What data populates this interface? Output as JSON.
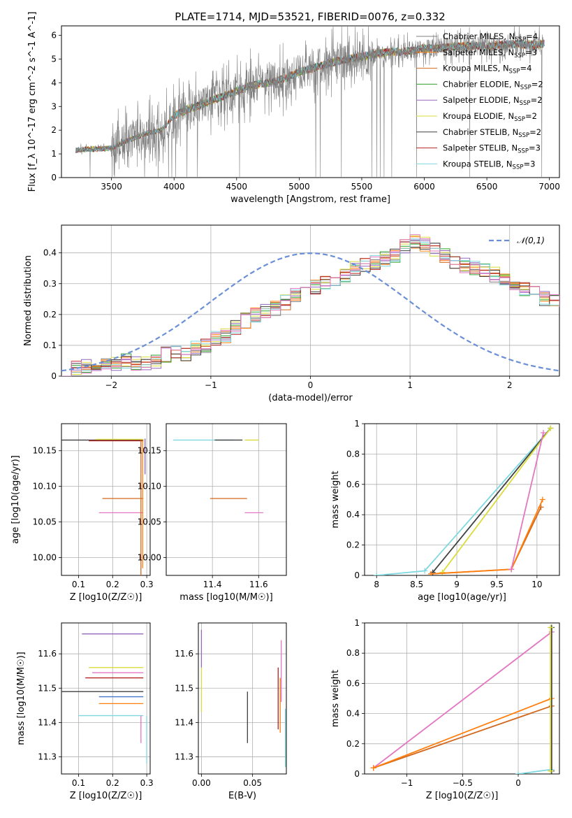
{
  "figure_title": "PLATE=1714, MJD=53521, FIBERID=0076, z=0.332",
  "colors": {
    "Chabrier MILES": "#7f7f7f",
    "Salpeter MILES": "#ff7f0e",
    "Kroupa MILES": "#d2691e",
    "Chabrier ELODIE": "#2ca02c",
    "Salpeter ELODIE": "#9467bd",
    "Kroupa ELODIE": "#dbdb3d",
    "Chabrier STELIB": "#404040",
    "Salpeter STELIB": "#b22222",
    "Kroupa STELIB": "#7fd8e0",
    "pink": "#e377c2",
    "blue": "#4477cc",
    "normal": "#6a8fd6",
    "grid": "#b0b0b0"
  },
  "chart_data": [
    {
      "id": "spectrum",
      "type": "line",
      "title": "PLATE=1714, MJD=53521, FIBERID=0076, z=0.332",
      "xlabel": "wavelength [Angstrom, rest frame]",
      "ylabel": "Flux [f_λ 10^-17 erg cm^-2 s^-1 A^-1]",
      "xlim": [
        3100,
        7080
      ],
      "ylim": [
        0,
        6.4
      ],
      "xticks": [
        3500,
        4000,
        4500,
        5000,
        5500,
        6000,
        6500,
        7000
      ],
      "yticks": [
        0,
        1,
        2,
        3,
        4,
        5,
        6
      ],
      "grid": false,
      "legend_position": "top-right",
      "legend": [
        {
          "label": "Chabrier MILES, N",
          "sub": "SSP",
          "suffix": "=4",
          "color": "#7f7f7f"
        },
        {
          "label": "Salpeter MILES, N",
          "sub": "SSP",
          "suffix": "=3",
          "color": "#ff7f0e"
        },
        {
          "label": "Kroupa MILES, N",
          "sub": "SSP",
          "suffix": "=4",
          "color": "#d2691e"
        },
        {
          "label": "Chabrier ELODIE, N",
          "sub": "SSP",
          "suffix": "=2",
          "color": "#2ca02c"
        },
        {
          "label": "Salpeter ELODIE, N",
          "sub": "SSP",
          "suffix": "=2",
          "color": "#9467bd"
        },
        {
          "label": "Kroupa ELODIE, N",
          "sub": "SSP",
          "suffix": "=2",
          "color": "#dbdb3d"
        },
        {
          "label": "Chabrier STELIB, N",
          "sub": "SSP",
          "suffix": "=2",
          "color": "#404040"
        },
        {
          "label": "Salpeter STELIB, N",
          "sub": "SSP",
          "suffix": "=3",
          "color": "#b22222"
        },
        {
          "label": "Kroupa STELIB, N",
          "sub": "SSP",
          "suffix": "=3",
          "color": "#7fd8e0"
        }
      ],
      "continuum": {
        "wavelength": [
          3210,
          3300,
          3400,
          3500,
          3600,
          3700,
          3800,
          3900,
          4000,
          4100,
          4200,
          4300,
          4400,
          4500,
          4600,
          4700,
          4800,
          4900,
          5000,
          5100,
          5200,
          5300,
          5400,
          5500,
          5600,
          5700,
          5800,
          5900,
          6000,
          6100,
          6200,
          6300,
          6400,
          6500,
          6600,
          6700,
          6800,
          6900,
          6960
        ],
        "flux": [
          1.15,
          1.2,
          1.2,
          1.25,
          1.5,
          1.7,
          1.9,
          2.0,
          2.6,
          2.85,
          3.05,
          3.25,
          3.45,
          3.65,
          3.85,
          3.95,
          4.05,
          4.2,
          4.45,
          4.6,
          4.75,
          4.9,
          5.0,
          5.1,
          5.2,
          5.3,
          5.3,
          5.35,
          5.45,
          5.45,
          5.5,
          5.55,
          5.55,
          5.55,
          5.6,
          5.65,
          5.6,
          5.6,
          5.65
        ]
      }
    },
    {
      "id": "residuals",
      "type": "line",
      "xlabel": "(data-model)/error",
      "ylabel": "Normed distribution",
      "xlim": [
        -2.5,
        2.5
      ],
      "ylim": [
        0,
        0.49
      ],
      "xticks": [
        -2,
        -1,
        0,
        1,
        2
      ],
      "yticks": [
        0.0,
        0.1,
        0.2,
        0.3,
        0.4
      ],
      "grid": true,
      "legend_position": "top-right",
      "normal_label": "𝒩(0,1)",
      "bin_width": 0.1,
      "bin_edges_start": -2.5,
      "bin_values": [
        0.02,
        0.03,
        0.03,
        0.03,
        0.04,
        0.04,
        0.05,
        0.04,
        0.04,
        0.05,
        0.07,
        0.08,
        0.07,
        0.09,
        0.1,
        0.12,
        0.13,
        0.16,
        0.18,
        0.2,
        0.21,
        0.22,
        0.24,
        0.26,
        0.27,
        0.29,
        0.3,
        0.31,
        0.33,
        0.35,
        0.36,
        0.37,
        0.38,
        0.39,
        0.42,
        0.44,
        0.43,
        0.41,
        0.39,
        0.37,
        0.36,
        0.35,
        0.34,
        0.33,
        0.31,
        0.29,
        0.28,
        0.27,
        0.25,
        0.24,
        0.22,
        0.2,
        0.18,
        0.16,
        0.14,
        0.13,
        0.11,
        0.1,
        0.09,
        0.1,
        0.08,
        0.08,
        0.07,
        0.07,
        0.06,
        0.06,
        0.05,
        0.05,
        0.04,
        0.04,
        0.03,
        0.03,
        0.03,
        0.02,
        0.02
      ]
    },
    {
      "id": "age_vs_Z",
      "type": "scatter",
      "xlabel": "Z [log10(Z/Z☉)]",
      "ylabel": "age [log10(age/yr)]",
      "xlim": [
        0.05,
        0.31
      ],
      "ylim": [
        9.975,
        10.188
      ],
      "xticks": [
        0.1,
        0.2,
        0.3
      ],
      "yticks": [
        10.0,
        10.05,
        10.1,
        10.15
      ],
      "ytick_labels": [
        "10.00",
        "10.05",
        "10.10",
        "10.15"
      ],
      "grid": true,
      "errorbars": [
        {
          "x": 0.29,
          "y": 10.165,
          "xerr": [
            0.24,
            0.0
          ],
          "yerr": [
            0.0,
            0.0
          ],
          "color": "#404040"
        },
        {
          "x": 0.29,
          "y": 10.164,
          "xerr": [
            0.16,
            0.0
          ],
          "yerr": [
            0.0,
            0.0
          ],
          "color": "#b22222"
        },
        {
          "x": 0.29,
          "y": 10.166,
          "xerr": [
            0.14,
            0.0
          ],
          "yerr": [
            0.0,
            0.0
          ],
          "color": "#dbdb3d"
        },
        {
          "x": 0.29,
          "y": 10.083,
          "xerr": [
            0.12,
            0.0
          ],
          "yerr": [
            0.0,
            0.0
          ],
          "color": "#d2691e"
        },
        {
          "x": 0.29,
          "y": 10.063,
          "xerr": [
            0.13,
            0.0
          ],
          "yerr": [
            0.0,
            0.0
          ],
          "color": "#e377c2"
        },
        {
          "x": 0.283,
          "y": 10.165,
          "xerr": [
            0.0,
            0.0
          ],
          "yerr": [
            0.19,
            0.0
          ],
          "color": "#d2691e"
        },
        {
          "x": 0.288,
          "y": 10.165,
          "xerr": [
            0.0,
            0.0
          ],
          "yerr": [
            0.18,
            0.0
          ],
          "color": "#ff7f0e"
        },
        {
          "x": 0.295,
          "y": 10.167,
          "xerr": [
            0.0,
            0.0
          ],
          "yerr": [
            0.05,
            0.0
          ],
          "color": "#9467bd"
        }
      ]
    },
    {
      "id": "age_vs_mass",
      "type": "scatter",
      "xlabel": "mass [log10(M/M☉)]",
      "xlim": [
        11.2,
        11.72
      ],
      "ylim": [
        9.975,
        10.188
      ],
      "xticks": [
        11.4,
        11.6
      ],
      "yticks": [
        10.0,
        10.05,
        10.1,
        10.15
      ],
      "ytick_labels": [
        "10.00",
        "10.05",
        "10.10",
        "10.15"
      ],
      "grid": true,
      "errorbars": [
        {
          "x": 11.49,
          "y": 10.165,
          "xerr": [
            0.26,
            0.0
          ],
          "yerr": [
            0.0,
            0.0
          ],
          "color": "#7fd8e0"
        },
        {
          "x": 11.53,
          "y": 10.165,
          "xerr": [
            0.12,
            0.0
          ],
          "yerr": [
            0.0,
            0.0
          ],
          "color": "#404040"
        },
        {
          "x": 11.6,
          "y": 10.165,
          "xerr": [
            0.06,
            0.0
          ],
          "yerr": [
            0.0,
            0.0
          ],
          "color": "#dbdb3d"
        },
        {
          "x": 11.55,
          "y": 10.083,
          "xerr": [
            0.16,
            0.0
          ],
          "yerr": [
            0.0,
            0.0
          ],
          "color": "#d2691e"
        },
        {
          "x": 11.62,
          "y": 10.063,
          "xerr": [
            0.08,
            0.0
          ],
          "yerr": [
            0.0,
            0.0
          ],
          "color": "#e377c2"
        }
      ]
    },
    {
      "id": "massweight_vs_age",
      "type": "line",
      "xlabel": "age [log10(age/yr)]",
      "ylabel": "mass weight",
      "xlim": [
        7.85,
        10.28
      ],
      "ylim": [
        0,
        1
      ],
      "xticks": [
        8.0,
        8.5,
        9.0,
        9.5,
        10.0
      ],
      "yticks": [
        0.0,
        0.2,
        0.4,
        0.6,
        0.8,
        1.0
      ],
      "grid": true,
      "series": [
        {
          "color": "#7fd8e0",
          "x": [
            8.0,
            8.6,
            10.17
          ],
          "y": [
            0.0,
            0.03,
            0.97
          ]
        },
        {
          "color": "#404040",
          "x": [
            8.7,
            10.17
          ],
          "y": [
            0.02,
            0.97
          ]
        },
        {
          "color": "#dbdb3d",
          "x": [
            8.82,
            10.17
          ],
          "y": [
            0.02,
            0.97
          ]
        },
        {
          "color": "#d2691e",
          "x": [
            8.68,
            9.68,
            10.05
          ],
          "y": [
            0.01,
            0.04,
            0.45
          ]
        },
        {
          "color": "#ff7f0e",
          "x": [
            8.68,
            9.68,
            10.07
          ],
          "y": [
            0.01,
            0.04,
            0.5
          ]
        },
        {
          "color": "#e377c2",
          "x": [
            9.68,
            10.08
          ],
          "y": [
            0.04,
            0.94
          ]
        }
      ]
    },
    {
      "id": "mass_vs_Z",
      "type": "scatter",
      "xlabel": "Z [log10(Z/Z☉)]",
      "ylabel": "mass [log10(M/M☉)]",
      "xlim": [
        0.05,
        0.31
      ],
      "ylim": [
        11.25,
        11.69
      ],
      "xticks": [
        0.1,
        0.2,
        0.3
      ],
      "yticks": [
        11.3,
        11.4,
        11.5,
        11.6
      ],
      "grid": true,
      "errorbars": [
        {
          "x": 0.29,
          "y": 11.658,
          "xerr": [
            0.18,
            0.0
          ],
          "yerr": [
            0.0,
            0.0
          ],
          "color": "#9467bd"
        },
        {
          "x": 0.29,
          "y": 11.56,
          "xerr": [
            0.16,
            0.0
          ],
          "yerr": [
            0.0,
            0.0
          ],
          "color": "#dbdb3d"
        },
        {
          "x": 0.29,
          "y": 11.545,
          "xerr": [
            0.15,
            0.0
          ],
          "yerr": [
            0.0,
            0.0
          ],
          "color": "#e377c2"
        },
        {
          "x": 0.29,
          "y": 11.53,
          "xerr": [
            0.17,
            0.0
          ],
          "yerr": [
            0.0,
            0.0
          ],
          "color": "#b22222"
        },
        {
          "x": 0.29,
          "y": 11.49,
          "xerr": [
            0.24,
            0.0
          ],
          "yerr": [
            0.0,
            0.0
          ],
          "color": "#404040"
        },
        {
          "x": 0.29,
          "y": 11.475,
          "xerr": [
            0.13,
            0.0
          ],
          "yerr": [
            0.0,
            0.0
          ],
          "color": "#4477cc"
        },
        {
          "x": 0.29,
          "y": 11.455,
          "xerr": [
            0.13,
            0.0
          ],
          "yerr": [
            0.0,
            0.0
          ],
          "color": "#ff7f0e"
        },
        {
          "x": 0.29,
          "y": 11.42,
          "xerr": [
            0.19,
            0.0
          ],
          "yerr": [
            0.0,
            0.0
          ],
          "color": "#7fd8e0"
        },
        {
          "x": 0.283,
          "y": 11.42,
          "xerr": [
            0.0,
            0.0
          ],
          "yerr": [
            0.08,
            0.0
          ],
          "color": "#e377c2"
        },
        {
          "x": 0.3,
          "y": 11.42,
          "xerr": [
            0.0,
            0.0
          ],
          "yerr": [
            0.14,
            0.0
          ],
          "color": "#7fd8e0"
        }
      ]
    },
    {
      "id": "mass_vs_EBV",
      "type": "scatter",
      "xlabel": "E(B-V)",
      "xlim": [
        -0.003,
        0.083
      ],
      "ylim": [
        11.25,
        11.69
      ],
      "xticks": [
        0.0,
        0.05
      ],
      "xtick_labels": [
        "0.00",
        "0.05"
      ],
      "yticks": [
        11.3,
        11.4,
        11.5,
        11.6
      ],
      "grid": true,
      "errorbars": [
        {
          "x": 0.0,
          "y": 11.62,
          "xerr": [
            0.0,
            0.0
          ],
          "yerr": [
            0.06,
            0.05
          ],
          "color": "#9467bd"
        },
        {
          "x": 0.0,
          "y": 11.5,
          "xerr": [
            0.0,
            0.0
          ],
          "yerr": [
            0.07,
            0.06
          ],
          "color": "#dbdb3d"
        },
        {
          "x": 0.045,
          "y": 11.415,
          "xerr": [
            0.0,
            0.0
          ],
          "yerr": [
            0.075,
            0.075
          ],
          "color": "#404040"
        },
        {
          "x": 0.075,
          "y": 11.47,
          "xerr": [
            0.0,
            0.0
          ],
          "yerr": [
            0.09,
            0.09
          ],
          "color": "#b22222"
        },
        {
          "x": 0.077,
          "y": 11.45,
          "xerr": [
            0.0,
            0.0
          ],
          "yerr": [
            0.08,
            0.08
          ],
          "color": "#ff7f0e"
        },
        {
          "x": 0.078,
          "y": 11.55,
          "xerr": [
            0.0,
            0.0
          ],
          "yerr": [
            0.09,
            0.09
          ],
          "color": "#e377c2"
        },
        {
          "x": 0.082,
          "y": 11.36,
          "xerr": [
            0.0,
            0.0
          ],
          "yerr": [
            0.09,
            0.08
          ],
          "color": "#7fd8e0"
        }
      ]
    },
    {
      "id": "massweight_vs_Z",
      "type": "line",
      "xlabel": "Z [log10(Z/Z☉)]",
      "ylabel": "mass weight",
      "xlim": [
        -1.38,
        0.37
      ],
      "ylim": [
        0,
        1
      ],
      "xticks": [
        -1.0,
        -0.5,
        0.0
      ],
      "yticks": [
        0.0,
        0.2,
        0.4,
        0.6,
        0.8,
        1.0
      ],
      "grid": true,
      "series": [
        {
          "color": "#e377c2",
          "x": [
            -1.3,
            0.3
          ],
          "y": [
            0.04,
            0.94
          ]
        },
        {
          "color": "#d2691e",
          "x": [
            -1.3,
            0.3
          ],
          "y": [
            0.04,
            0.45
          ]
        },
        {
          "color": "#ff7f0e",
          "x": [
            -1.3,
            0.3
          ],
          "y": [
            0.04,
            0.5
          ]
        },
        {
          "color": "#7fd8e0",
          "x": [
            0.0,
            0.3,
            0.3
          ],
          "y": [
            0.0,
            0.03,
            0.97
          ]
        },
        {
          "color": "#404040",
          "x": [
            0.3,
            0.3
          ],
          "y": [
            0.02,
            0.97
          ]
        },
        {
          "color": "#dbdb3d",
          "x": [
            0.29,
            0.29
          ],
          "y": [
            0.02,
            0.97
          ]
        }
      ]
    }
  ]
}
